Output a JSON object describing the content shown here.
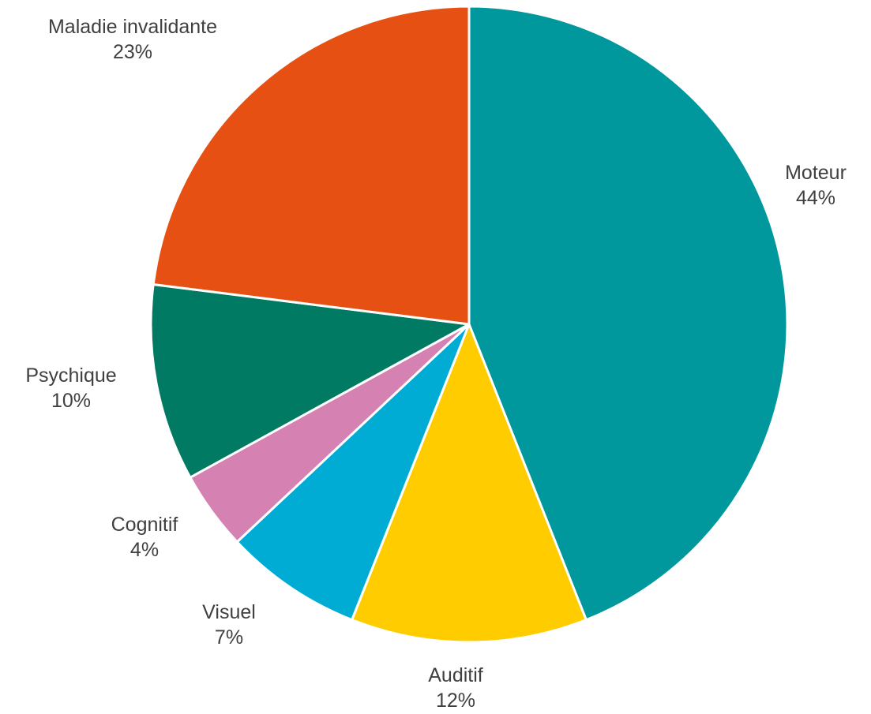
{
  "chart_data": {
    "type": "pie",
    "title": "",
    "slices": [
      {
        "label": "Moteur",
        "value": 44,
        "value_label": "44%",
        "color": "#00979D"
      },
      {
        "label": "Auditif",
        "value": 12,
        "value_label": "12%",
        "color": "#FFCC00"
      },
      {
        "label": "Visuel",
        "value": 7,
        "value_label": "7%",
        "color": "#00ACD4"
      },
      {
        "label": "Cognitif",
        "value": 4,
        "value_label": "4%",
        "color": "#D581B2"
      },
      {
        "label": "Psychique",
        "value": 10,
        "value_label": "10%",
        "color": "#007A63"
      },
      {
        "label": "Maladie invalidante",
        "value": 23,
        "value_label": "23%",
        "color": "#E65012"
      }
    ],
    "start_angle": "12 o'clock",
    "direction": "clockwise",
    "legend": "none"
  }
}
